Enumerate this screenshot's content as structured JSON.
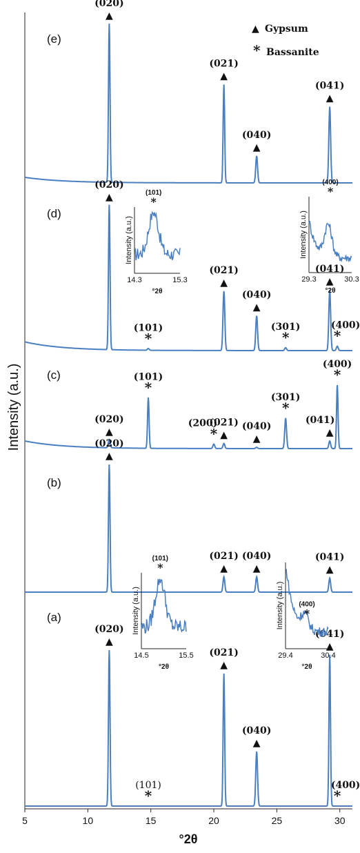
{
  "chart_data": {
    "type": "line",
    "xlabel": "°2θ",
    "ylabel": "Intensity (a.u.)",
    "xlim": [
      5,
      31
    ],
    "xticks": [
      "5",
      "10",
      "15",
      "20",
      "25",
      "30"
    ],
    "legend": {
      "placement": "top-right",
      "entries": [
        {
          "marker": "▲",
          "label": "Gypsum"
        },
        {
          "marker": "*",
          "label": "Bassanite"
        }
      ]
    },
    "line_color": "#4a7fc1",
    "panels": [
      {
        "label": "(e)",
        "peaks": [
          {
            "x": 11.7,
            "rel": 1.0,
            "hkl": "(020)",
            "phase": "gypsum"
          },
          {
            "x": 20.8,
            "rel": 0.62,
            "hkl": "(021)",
            "phase": "gypsum"
          },
          {
            "x": 23.4,
            "rel": 0.17,
            "hkl": "(040)",
            "phase": "gypsum"
          },
          {
            "x": 29.2,
            "rel": 0.48,
            "hkl": "(041)",
            "phase": "gypsum"
          }
        ]
      },
      {
        "label": "(d)",
        "peaks": [
          {
            "x": 11.7,
            "rel": 1.0,
            "hkl": "(020)",
            "phase": "gypsum"
          },
          {
            "x": 14.8,
            "rel": 0.012,
            "hkl": "(101)",
            "phase": "bassanite"
          },
          {
            "x": 20.8,
            "rel": 0.41,
            "hkl": "(021)",
            "phase": "gypsum"
          },
          {
            "x": 23.4,
            "rel": 0.24,
            "hkl": "(040)",
            "phase": "gypsum"
          },
          {
            "x": 25.7,
            "rel": 0.02,
            "hkl": "(301)",
            "phase": "bassanite"
          },
          {
            "x": 29.2,
            "rel": 0.42,
            "hkl": "(041)",
            "phase": "gypsum"
          },
          {
            "x": 29.8,
            "rel": 0.03,
            "hkl": "(400)",
            "phase": "bassanite"
          }
        ],
        "insets": [
          {
            "peak_label": "(101)",
            "xlim": [
              "14.3",
              "15.3"
            ],
            "ylabel": "Intensity (a.u.)",
            "xlabel": "°2θ"
          },
          {
            "peak_label": "(400)",
            "xlim": [
              "29.3",
              "30.3"
            ],
            "ylabel": "Intensity (a.u.)",
            "xlabel": "°2θ"
          }
        ]
      },
      {
        "label": "(c)",
        "peaks": [
          {
            "x": 11.7,
            "rel": 0.13,
            "hkl": "(020)",
            "phase": "gypsum"
          },
          {
            "x": 14.8,
            "rel": 0.8,
            "hkl": "(101)",
            "phase": "bassanite"
          },
          {
            "x": 20.0,
            "rel": 0.07,
            "hkl": "(200)",
            "phase": "bassanite"
          },
          {
            "x": 20.8,
            "rel": 0.08,
            "hkl": "(021)",
            "phase": "gypsum"
          },
          {
            "x": 23.4,
            "rel": 0.02,
            "hkl": "(040)",
            "phase": "gypsum"
          },
          {
            "x": 25.7,
            "rel": 0.48,
            "hkl": "(301)",
            "phase": "bassanite"
          },
          {
            "x": 29.2,
            "rel": 0.12,
            "hkl": "(041)",
            "phase": "gypsum"
          },
          {
            "x": 29.8,
            "rel": 1.0,
            "hkl": "(400)",
            "phase": "bassanite"
          }
        ]
      },
      {
        "label": "(b)",
        "peaks": [
          {
            "x": 11.7,
            "rel": 1.0,
            "hkl": "(020)",
            "phase": "gypsum"
          },
          {
            "x": 20.8,
            "rel": 0.12,
            "hkl": "(021)",
            "phase": "gypsum"
          },
          {
            "x": 23.4,
            "rel": 0.12,
            "hkl": "(040)",
            "phase": "gypsum"
          },
          {
            "x": 29.2,
            "rel": 0.11,
            "hkl": "(041)",
            "phase": "gypsum"
          }
        ]
      },
      {
        "label": "(a)",
        "peaks": [
          {
            "x": 11.7,
            "rel": 1.0,
            "hkl": "(020)",
            "phase": "gypsum"
          },
          {
            "x": 14.8,
            "rel": 0.0,
            "hkl": "(101)",
            "phase": "bassanite"
          },
          {
            "x": 20.8,
            "rel": 0.85,
            "hkl": "(021)",
            "phase": "gypsum"
          },
          {
            "x": 23.4,
            "rel": 0.35,
            "hkl": "(040)",
            "phase": "gypsum"
          },
          {
            "x": 29.2,
            "rel": 0.97,
            "hkl": "(041)",
            "phase": "gypsum"
          },
          {
            "x": 29.8,
            "rel": 0.0,
            "hkl": "(400)",
            "phase": "bassanite"
          }
        ],
        "insets": [
          {
            "peak_label": "(101)",
            "xlim": [
              "14.5",
              "15.5"
            ],
            "ylabel": "Intensity (a.u.)",
            "xlabel": "°2θ"
          },
          {
            "peak_label": "(400)",
            "xlim": [
              "29.4",
              "30.4"
            ],
            "ylabel": "Intensity (a.u.)",
            "xlabel": "°2θ"
          }
        ]
      }
    ]
  }
}
